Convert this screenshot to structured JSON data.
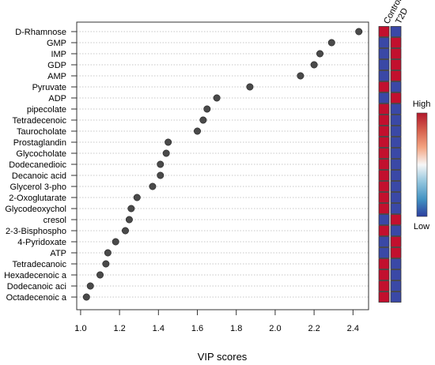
{
  "chart_data": {
    "type": "scatter",
    "xlabel": "VIP scores",
    "xlim": [
      0.98,
      2.48
    ],
    "xticks": [
      "1.0",
      "1.2",
      "1.4",
      "1.6",
      "1.8",
      "2.0",
      "2.2",
      "2.4"
    ],
    "grid": "horizontal dotted",
    "categories": [
      "D-Rhamnose",
      "GMP",
      "IMP",
      "GDP",
      "AMP",
      "Pyruvate",
      "ADP",
      "pipecolate",
      "Tetradecenoic",
      "Taurocholate",
      "Prostaglandin",
      "Glycocholate",
      "Dodecanedioic",
      "Decanoic acid",
      "Glycerol 3-pho",
      "2-Oxoglutarate",
      "Glycodeoxychol",
      "cresol",
      "2-3-Bisphospho",
      "4-Pyridoxate",
      "ATP",
      "Tetradecanoic",
      "Hexadecenoic a",
      "Dodecanoic aci",
      "Octadecenoic a"
    ],
    "values": [
      2.43,
      2.29,
      2.23,
      2.2,
      2.13,
      1.87,
      1.7,
      1.65,
      1.63,
      1.6,
      1.45,
      1.44,
      1.41,
      1.41,
      1.37,
      1.29,
      1.26,
      1.25,
      1.23,
      1.18,
      1.14,
      1.13,
      1.1,
      1.05,
      1.03
    ],
    "heatmap": {
      "columns": [
        "Control",
        "T2D"
      ],
      "levels": [
        [
          "high",
          "low"
        ],
        [
          "low",
          "high"
        ],
        [
          "low",
          "high"
        ],
        [
          "low",
          "high"
        ],
        [
          "low",
          "high"
        ],
        [
          "high",
          "low"
        ],
        [
          "low",
          "high"
        ],
        [
          "high",
          "low"
        ],
        [
          "high",
          "low"
        ],
        [
          "high",
          "low"
        ],
        [
          "high",
          "low"
        ],
        [
          "high",
          "low"
        ],
        [
          "high",
          "low"
        ],
        [
          "high",
          "low"
        ],
        [
          "high",
          "low"
        ],
        [
          "high",
          "low"
        ],
        [
          "high",
          "low"
        ],
        [
          "low",
          "high"
        ],
        [
          "high",
          "low"
        ],
        [
          "low",
          "high"
        ],
        [
          "low",
          "high"
        ],
        [
          "high",
          "low"
        ],
        [
          "high",
          "low"
        ],
        [
          "high",
          "low"
        ],
        [
          "high",
          "low"
        ]
      ],
      "colors": {
        "high": "#c2102e",
        "low": "#3a48a6"
      }
    },
    "legend": {
      "high_label": "High",
      "low_label": "Low",
      "position": "right",
      "gradient": [
        "#b2182b",
        "#d6604d",
        "#f4a582",
        "#f7f7f7",
        "#92c5de",
        "#4393c3",
        "#2c3e9e"
      ]
    },
    "point_color": "#4a4a4a"
  }
}
